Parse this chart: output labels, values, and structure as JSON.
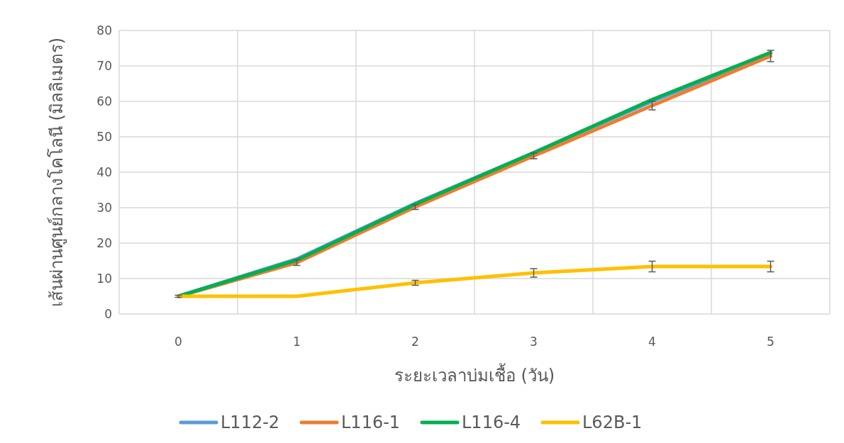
{
  "chart_data": {
    "type": "line",
    "xlabel": "ระยะเวลาบ่มเชื้อ (วัน)",
    "ylabel": "เส้นผ่านศูนย์กลางโคโลนี (มิลลิเมตร)",
    "categories": [
      "0",
      "1",
      "2",
      "3",
      "4",
      "5"
    ],
    "ylim": [
      0,
      80
    ],
    "yticks": [
      0,
      10,
      20,
      30,
      40,
      50,
      60,
      70,
      80
    ],
    "grid": true,
    "legend": "bottom",
    "marker": "none",
    "line_style": "solid",
    "series": [
      {
        "name": "L112-2",
        "color": "#5b9bd5",
        "values": [
          5,
          15.5,
          31.2,
          45.5,
          60,
          73.5
        ]
      },
      {
        "name": "L116-1",
        "color": "#ed7d31",
        "values": [
          5,
          14.5,
          30.2,
          44.6,
          58.8,
          72.8
        ],
        "errors": [
          0.3,
          0.8,
          0.7,
          0.8,
          1.2,
          1.6
        ]
      },
      {
        "name": "L116-4",
        "color": "#00b050",
        "values": [
          5,
          15.2,
          31,
          45.5,
          60.5,
          73.8
        ]
      },
      {
        "name": "L62B-1",
        "color": "#ffc000",
        "values": [
          5,
          5,
          8.8,
          11.6,
          13.4,
          13.4
        ],
        "errors": [
          null,
          null,
          0.7,
          1.2,
          1.5,
          1.5
        ]
      }
    ]
  }
}
